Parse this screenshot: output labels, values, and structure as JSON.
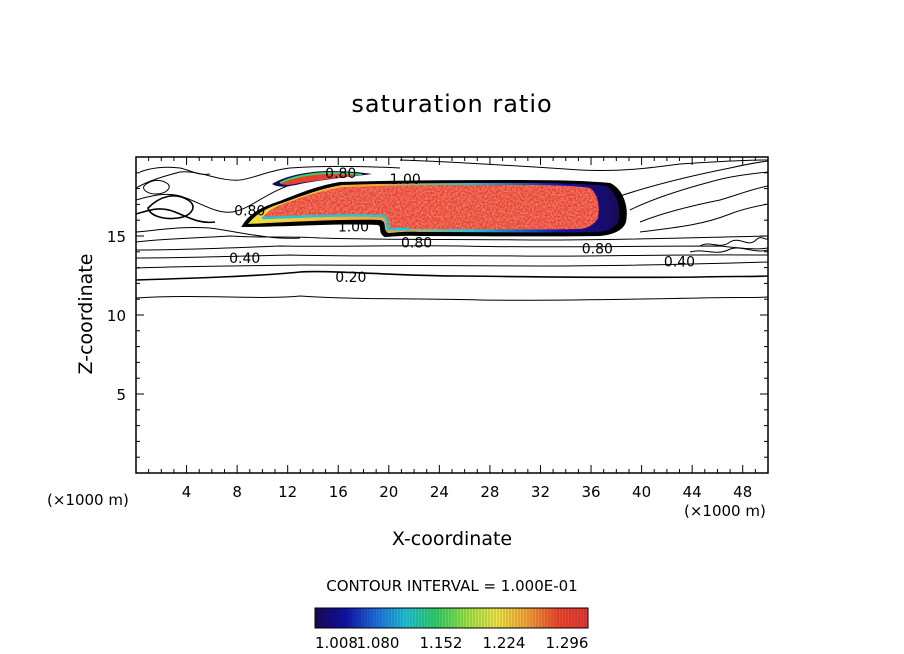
{
  "chart_data": {
    "type": "heatmap",
    "title": "saturation ratio",
    "xlabel": "X-coordinate",
    "ylabel": "Z-coordinate",
    "x_unit_label": "(×1000 m)",
    "xlim": [
      0,
      50
    ],
    "ylim": [
      0,
      20
    ],
    "x_ticks": [
      4,
      8,
      12,
      16,
      20,
      24,
      28,
      32,
      36,
      40,
      44,
      48
    ],
    "y_ticks": [
      5,
      10,
      15
    ],
    "contour_interval_label": "CONTOUR INTERVAL = 1.000E-01",
    "contour_labels": [
      {
        "text": "0.80",
        "x": 16.2,
        "y": 19.0
      },
      {
        "text": "1.00",
        "x": 21.3,
        "y": 18.6
      },
      {
        "text": "0.80",
        "x": 9.0,
        "y": 16.6
      },
      {
        "text": "1.00",
        "x": 17.2,
        "y": 15.6
      },
      {
        "text": "0.80",
        "x": 22.2,
        "y": 14.6
      },
      {
        "text": "0.80",
        "x": 36.5,
        "y": 14.2
      },
      {
        "text": "0.40",
        "x": 8.6,
        "y": 13.6
      },
      {
        "text": "0.40",
        "x": 43.0,
        "y": 13.4
      },
      {
        "text": "0.20",
        "x": 17.0,
        "y": 12.4
      }
    ],
    "colorbar": {
      "range": [
        1.008,
        1.32
      ],
      "tick_values": [
        1.008,
        1.08,
        1.152,
        1.224,
        1.296
      ],
      "tick_labels": [
        "1.008",
        "1.080",
        "1.152",
        "1.224",
        "1.296"
      ],
      "colors": [
        "#1a0a55",
        "#1111aa",
        "#1f6fe0",
        "#22c4d8",
        "#33d266",
        "#9ee64a",
        "#f2e84a",
        "#f6a338",
        "#ef4a2e",
        "#e63a3a"
      ]
    }
  }
}
